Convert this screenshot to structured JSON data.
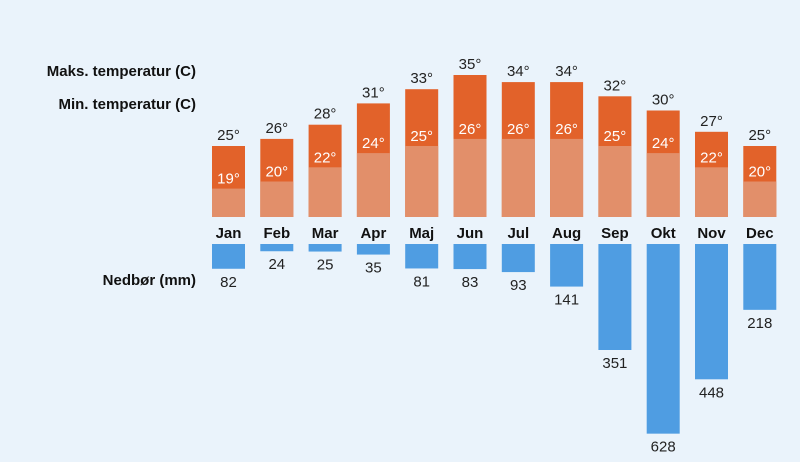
{
  "chart_data": {
    "type": "bar",
    "title": "",
    "categories": [
      "Jan",
      "Feb",
      "Mar",
      "Apr",
      "Maj",
      "Jun",
      "Jul",
      "Aug",
      "Sep",
      "Okt",
      "Nov",
      "Dec"
    ],
    "series": [
      {
        "name": "Maks. temperatur (C)",
        "values": [
          25,
          26,
          28,
          31,
          33,
          35,
          34,
          34,
          32,
          30,
          27,
          25
        ]
      },
      {
        "name": "Min. temperatur (C)",
        "values": [
          19,
          20,
          22,
          24,
          25,
          26,
          26,
          26,
          25,
          24,
          22,
          20
        ]
      },
      {
        "name": "Nedbør (mm)",
        "values": [
          82,
          24,
          25,
          35,
          81,
          83,
          93,
          141,
          351,
          628,
          448,
          218
        ]
      }
    ],
    "labels": {
      "max": "Maks. temperatur (C)",
      "min": "Min. temperatur (C)",
      "rain": "Nedbør (mm)"
    },
    "degree_suffix": "°",
    "colors": {
      "background": "#eaf3fb",
      "max": "#e2622a",
      "min": "#e28f6a",
      "rain": "#4f9de2",
      "text": "#111111",
      "text_inside": "#ffffff"
    }
  }
}
